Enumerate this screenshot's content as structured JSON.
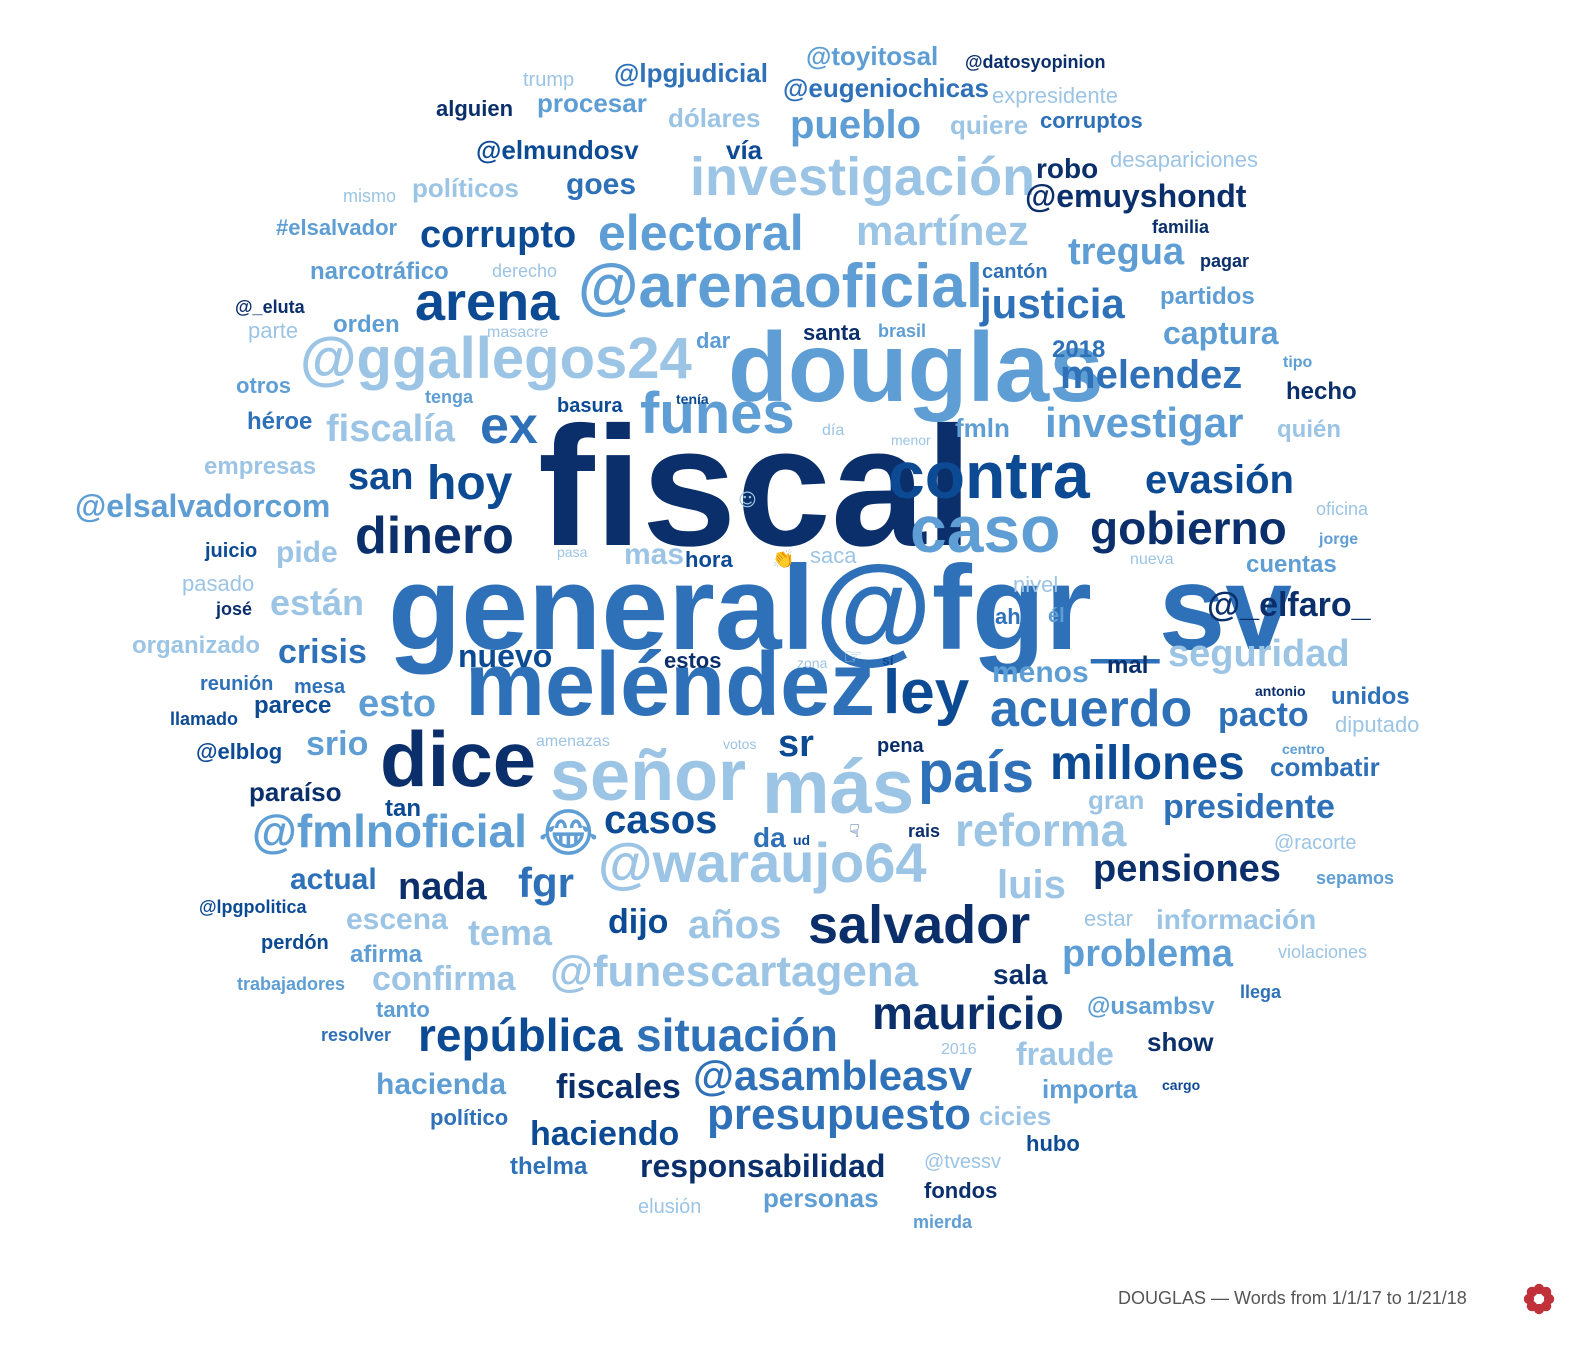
{
  "colors": {
    "navy": "#0b2f6b",
    "dark": "#0d4a94",
    "mid": "#2f71b8",
    "light": "#5e9ed4",
    "pale": "#9cc4e5",
    "logo_red": "#c0313a"
  },
  "icons": [
    "grinning-tears-emoji",
    "clapping-hands-emoji",
    "pointing-right-emoji",
    "pointing-down-emoji",
    "smiley-emoji",
    "logo-flower-icon"
  ],
  "footer": {
    "caption": "DOUGLAS — Words from 1/1/17 to 1/21/18"
  },
  "words": [
    {
      "text": "fiscal",
      "c": "navy"
    },
    {
      "text": "general@fgr_sv",
      "c": "mid"
    },
    {
      "text": "douglas",
      "c": "light"
    },
    {
      "text": "meléndez",
      "c": "mid"
    },
    {
      "text": "más",
      "c": "pale"
    },
    {
      "text": "señor",
      "c": "pale"
    },
    {
      "text": "dice",
      "c": "navy"
    },
    {
      "text": "contra",
      "c": "dark"
    },
    {
      "text": "caso",
      "c": "light"
    },
    {
      "text": "@arenaoficial",
      "c": "light"
    },
    {
      "text": "@ggallegos24",
      "c": "pale"
    },
    {
      "text": "arena",
      "c": "dark"
    },
    {
      "text": "funes",
      "c": "light"
    },
    {
      "text": "investigación",
      "c": "pale"
    },
    {
      "text": "electoral",
      "c": "light"
    },
    {
      "text": "martínez",
      "c": "pale"
    },
    {
      "text": "ley",
      "c": "dark"
    },
    {
      "text": "país",
      "c": "mid"
    },
    {
      "text": "acuerdo",
      "c": "mid"
    },
    {
      "text": "millones",
      "c": "dark"
    },
    {
      "text": "reforma",
      "c": "pale"
    },
    {
      "text": "@waraujo64",
      "c": "pale"
    },
    {
      "text": "@fmlnoficial",
      "c": "light"
    },
    {
      "text": "salvador",
      "c": "navy"
    },
    {
      "text": "@funescartagena",
      "c": "pale"
    },
    {
      "text": "república",
      "c": "dark"
    },
    {
      "text": "situación",
      "c": "mid"
    },
    {
      "text": "mauricio",
      "c": "navy"
    },
    {
      "text": "@asambleasv",
      "c": "mid"
    },
    {
      "text": "presupuesto",
      "c": "mid"
    },
    {
      "text": "dinero",
      "c": "navy"
    },
    {
      "text": "gobierno",
      "c": "navy"
    },
    {
      "text": "hoy",
      "c": "dark"
    },
    {
      "text": "ex",
      "c": "mid"
    },
    {
      "text": "justicia",
      "c": "mid"
    },
    {
      "text": "melendez",
      "c": "mid"
    },
    {
      "text": "investigar",
      "c": "light"
    },
    {
      "text": "evasión",
      "c": "dark"
    },
    {
      "text": "pueblo",
      "c": "light"
    },
    {
      "text": "corrupto",
      "c": "dark"
    },
    {
      "text": "tregua",
      "c": "light"
    },
    {
      "text": "fiscalía",
      "c": "pale"
    },
    {
      "text": "san",
      "c": "dark"
    },
    {
      "text": "@elsalvadorcom",
      "c": "light"
    },
    {
      "text": "seguridad",
      "c": "pale"
    },
    {
      "text": "@_elfaro_",
      "c": "navy"
    },
    {
      "text": "están",
      "c": "pale"
    },
    {
      "text": "crisis",
      "c": "mid"
    },
    {
      "text": "nuevo",
      "c": "dark"
    },
    {
      "text": "esto",
      "c": "light"
    },
    {
      "text": "sr",
      "c": "dark"
    },
    {
      "text": "casos",
      "c": "dark"
    },
    {
      "text": "pensiones",
      "c": "navy"
    },
    {
      "text": "presidente",
      "c": "mid"
    },
    {
      "text": "nada",
      "c": "navy"
    },
    {
      "text": "fgr",
      "c": "mid"
    },
    {
      "text": "luis",
      "c": "pale"
    },
    {
      "text": "dijo",
      "c": "dark"
    },
    {
      "text": "años",
      "c": "pale"
    },
    {
      "text": "tema",
      "c": "pale"
    },
    {
      "text": "problema",
      "c": "light"
    },
    {
      "text": "confirma",
      "c": "pale"
    },
    {
      "text": "fiscales",
      "c": "navy"
    },
    {
      "text": "haciendo",
      "c": "dark"
    },
    {
      "text": "responsabilidad",
      "c": "navy"
    },
    {
      "text": "hacienda",
      "c": "light"
    },
    {
      "text": "fraude",
      "c": "pale"
    },
    {
      "text": "pacto",
      "c": "mid"
    },
    {
      "text": "captura",
      "c": "light"
    },
    {
      "text": "@eugeniochicas",
      "c": "mid"
    },
    {
      "text": "@lpgjudicial",
      "c": "mid"
    },
    {
      "text": "@toyitosal",
      "c": "light"
    },
    {
      "text": "@datosyopinion",
      "c": "navy"
    },
    {
      "text": "trump",
      "c": "pale"
    },
    {
      "text": "alguien",
      "c": "navy"
    },
    {
      "text": "procesar",
      "c": "light"
    },
    {
      "text": "dólares",
      "c": "pale"
    },
    {
      "text": "expresidente",
      "c": "pale"
    },
    {
      "text": "quiere",
      "c": "pale"
    },
    {
      "text": "corruptos",
      "c": "mid"
    },
    {
      "text": "@elmundosv",
      "c": "dark"
    },
    {
      "text": "vía",
      "c": "dark"
    },
    {
      "text": "robo",
      "c": "navy"
    },
    {
      "text": "desapariciones",
      "c": "pale"
    },
    {
      "text": "mismo",
      "c": "pale"
    },
    {
      "text": "políticos",
      "c": "pale"
    },
    {
      "text": "goes",
      "c": "mid"
    },
    {
      "text": "@emuyshondt",
      "c": "navy"
    },
    {
      "text": "#elsalvador",
      "c": "light"
    },
    {
      "text": "familia",
      "c": "navy"
    },
    {
      "text": "narcotráfico",
      "c": "light"
    },
    {
      "text": "derecho",
      "c": "pale"
    },
    {
      "text": "cantón",
      "c": "mid"
    },
    {
      "text": "pagar",
      "c": "navy"
    },
    {
      "text": "partidos",
      "c": "light"
    },
    {
      "text": "@_eluta",
      "c": "navy"
    },
    {
      "text": "parte",
      "c": "pale"
    },
    {
      "text": "orden",
      "c": "light"
    },
    {
      "text": "masacre",
      "c": "pale"
    },
    {
      "text": "santa",
      "c": "navy"
    },
    {
      "text": "brasil",
      "c": "light"
    },
    {
      "text": "dar",
      "c": "light"
    },
    {
      "text": "2018",
      "c": "mid"
    },
    {
      "text": "tipo",
      "c": "light"
    },
    {
      "text": "otros",
      "c": "light"
    },
    {
      "text": "tenga",
      "c": "light"
    },
    {
      "text": "basura",
      "c": "dark"
    },
    {
      "text": "tenía",
      "c": "dark"
    },
    {
      "text": "hecho",
      "c": "navy"
    },
    {
      "text": "héroe",
      "c": "mid"
    },
    {
      "text": "día",
      "c": "pale"
    },
    {
      "text": "menor",
      "c": "pale"
    },
    {
      "text": "fmln",
      "c": "light"
    },
    {
      "text": "quién",
      "c": "pale"
    },
    {
      "text": "empresas",
      "c": "pale"
    },
    {
      "text": "oficina",
      "c": "pale"
    },
    {
      "text": "juicio",
      "c": "dark"
    },
    {
      "text": "pide",
      "c": "pale"
    },
    {
      "text": "pasa",
      "c": "pale"
    },
    {
      "text": "mas",
      "c": "pale"
    },
    {
      "text": "hora",
      "c": "dark"
    },
    {
      "text": "saca",
      "c": "pale"
    },
    {
      "text": "nueva",
      "c": "pale"
    },
    {
      "text": "jorge",
      "c": "light"
    },
    {
      "text": "cuentas",
      "c": "light"
    },
    {
      "text": "pasado",
      "c": "pale"
    },
    {
      "text": "nivel",
      "c": "pale"
    },
    {
      "text": "josé",
      "c": "navy"
    },
    {
      "text": "ahí",
      "c": "mid"
    },
    {
      "text": "él",
      "c": "light"
    },
    {
      "text": "organizado",
      "c": "pale"
    },
    {
      "text": "estos",
      "c": "navy"
    },
    {
      "text": "zona",
      "c": "pale"
    },
    {
      "text": "sí",
      "c": "dark"
    },
    {
      "text": "menos",
      "c": "light"
    },
    {
      "text": "reunión",
      "c": "mid"
    },
    {
      "text": "mesa",
      "c": "mid"
    },
    {
      "text": "mal",
      "c": "navy"
    },
    {
      "text": "antonio",
      "c": "navy"
    },
    {
      "text": "unidos",
      "c": "mid"
    },
    {
      "text": "llamado",
      "c": "dark"
    },
    {
      "text": "parece",
      "c": "dark"
    },
    {
      "text": "diputado",
      "c": "pale"
    },
    {
      "text": "srio",
      "c": "light"
    },
    {
      "text": "@elblog",
      "c": "dark"
    },
    {
      "text": "amenazas",
      "c": "pale"
    },
    {
      "text": "votos",
      "c": "pale"
    },
    {
      "text": "pena",
      "c": "navy"
    },
    {
      "text": "centro",
      "c": "light"
    },
    {
      "text": "combatir",
      "c": "mid"
    },
    {
      "text": "paraíso",
      "c": "navy"
    },
    {
      "text": "gran",
      "c": "pale"
    },
    {
      "text": "tan",
      "c": "dark"
    },
    {
      "text": "da",
      "c": "mid"
    },
    {
      "text": "ud",
      "c": "dark"
    },
    {
      "text": "rais",
      "c": "navy"
    },
    {
      "text": "@racorte",
      "c": "pale"
    },
    {
      "text": "actual",
      "c": "mid"
    },
    {
      "text": "sepamos",
      "c": "light"
    },
    {
      "text": "@lpgpolitica",
      "c": "dark"
    },
    {
      "text": "escena",
      "c": "pale"
    },
    {
      "text": "estar",
      "c": "pale"
    },
    {
      "text": "información",
      "c": "pale"
    },
    {
      "text": "perdón",
      "c": "dark"
    },
    {
      "text": "afirma",
      "c": "light"
    },
    {
      "text": "violaciones",
      "c": "pale"
    },
    {
      "text": "sala",
      "c": "navy"
    },
    {
      "text": "trabajadores",
      "c": "light"
    },
    {
      "text": "tanto",
      "c": "light"
    },
    {
      "text": "llega",
      "c": "mid"
    },
    {
      "text": "@usambsv",
      "c": "light"
    },
    {
      "text": "resolver",
      "c": "mid"
    },
    {
      "text": "show",
      "c": "navy"
    },
    {
      "text": "2016",
      "c": "pale"
    },
    {
      "text": "importa",
      "c": "light"
    },
    {
      "text": "cargo",
      "c": "dark"
    },
    {
      "text": "cicies",
      "c": "pale"
    },
    {
      "text": "político",
      "c": "mid"
    },
    {
      "text": "hubo",
      "c": "dark"
    },
    {
      "text": "thelma",
      "c": "mid"
    },
    {
      "text": "@tvessv",
      "c": "pale"
    },
    {
      "text": "fondos",
      "c": "navy"
    },
    {
      "text": "personas",
      "c": "light"
    },
    {
      "text": "elusión",
      "c": "pale"
    },
    {
      "text": "mierda",
      "c": "light"
    }
  ],
  "emojis": [
    {
      "name": "grinning-tears-emoji",
      "glyph": "😂",
      "c": "light"
    },
    {
      "name": "clapping-hands-emoji",
      "glyph": "👏",
      "c": "navy"
    },
    {
      "name": "pointing-right-emoji",
      "glyph": "☞",
      "c": "pale"
    },
    {
      "name": "pointing-down-emoji",
      "glyph": "☟",
      "c": "dark"
    },
    {
      "name": "smiley-emoji",
      "glyph": "☺",
      "c": "pale"
    }
  ]
}
